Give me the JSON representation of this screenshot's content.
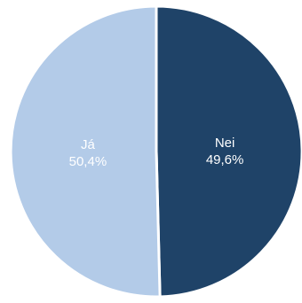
{
  "chart_data": {
    "type": "pie",
    "slices": [
      {
        "label": "Nei",
        "value": 49.6,
        "display": "49,6%",
        "color": "#1f4368"
      },
      {
        "label": "Já",
        "value": 50.4,
        "display": "50,4%",
        "color": "#b3cbe8"
      }
    ],
    "start": "top",
    "direction": "clockwise",
    "separator_color": "#ffffff"
  }
}
